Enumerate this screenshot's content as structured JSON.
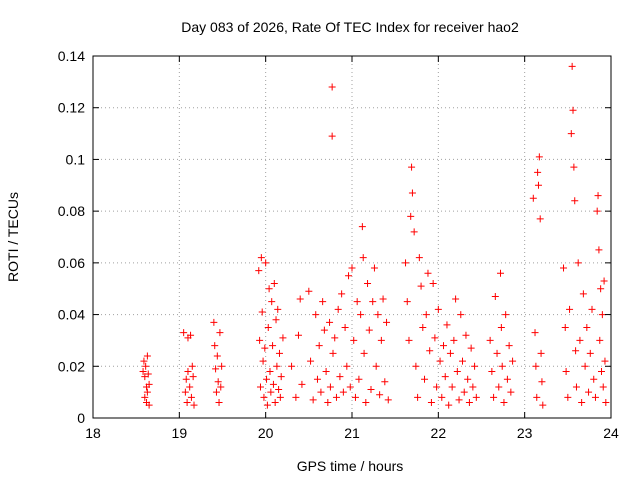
{
  "chart_data": {
    "type": "scatter",
    "title": "Day 083 of 2026, Rate Of TEC Index for receiver hao2",
    "xlabel": "GPS time / hours",
    "ylabel": "ROTI / TECUs",
    "xlim": [
      18,
      24
    ],
    "ylim": [
      0,
      0.14
    ],
    "x_ticks": [
      "18",
      "19",
      "20",
      "21",
      "22",
      "23",
      "24"
    ],
    "y_ticks": [
      "0",
      "0.02",
      "0.04",
      "0.06",
      "0.08",
      "0.1",
      "0.12",
      "0.14"
    ],
    "grid": true,
    "marker": "+",
    "marker_color": "#ff0000",
    "series": [
      {
        "name": "ROTI",
        "points": [
          [
            18.58,
            0.018
          ],
          [
            18.59,
            0.022
          ],
          [
            18.6,
            0.016
          ],
          [
            18.6,
            0.008
          ],
          [
            18.61,
            0.02
          ],
          [
            18.62,
            0.012
          ],
          [
            18.62,
            0.006
          ],
          [
            18.63,
            0.024
          ],
          [
            18.63,
            0.01
          ],
          [
            18.64,
            0.017
          ],
          [
            18.65,
            0.005
          ],
          [
            18.65,
            0.013
          ],
          [
            19.05,
            0.033
          ],
          [
            19.07,
            0.01
          ],
          [
            19.08,
            0.015
          ],
          [
            19.09,
            0.006
          ],
          [
            19.1,
            0.031
          ],
          [
            19.1,
            0.018
          ],
          [
            19.12,
            0.012
          ],
          [
            19.13,
            0.032
          ],
          [
            19.14,
            0.008
          ],
          [
            19.15,
            0.02
          ],
          [
            19.16,
            0.016
          ],
          [
            19.17,
            0.005
          ],
          [
            19.4,
            0.037
          ],
          [
            19.41,
            0.028
          ],
          [
            19.42,
            0.019
          ],
          [
            19.43,
            0.01
          ],
          [
            19.44,
            0.024
          ],
          [
            19.45,
            0.014
          ],
          [
            19.46,
            0.006
          ],
          [
            19.47,
            0.033
          ],
          [
            19.48,
            0.012
          ],
          [
            19.49,
            0.02
          ],
          [
            19.92,
            0.057
          ],
          [
            19.93,
            0.03
          ],
          [
            19.94,
            0.012
          ],
          [
            19.95,
            0.062
          ],
          [
            19.96,
            0.041
          ],
          [
            19.97,
            0.022
          ],
          [
            19.98,
            0.008
          ],
          [
            19.99,
            0.027
          ],
          [
            20.0,
            0.06
          ],
          [
            20.01,
            0.015
          ],
          [
            20.02,
            0.005
          ],
          [
            20.03,
            0.035
          ],
          [
            20.04,
            0.05
          ],
          [
            20.05,
            0.018
          ],
          [
            20.06,
            0.01
          ],
          [
            20.07,
            0.045
          ],
          [
            20.08,
            0.028
          ],
          [
            20.09,
            0.013
          ],
          [
            20.1,
            0.052
          ],
          [
            20.11,
            0.006
          ],
          [
            20.12,
            0.038
          ],
          [
            20.13,
            0.02
          ],
          [
            20.14,
            0.042
          ],
          [
            20.15,
            0.011
          ],
          [
            20.16,
            0.025
          ],
          [
            20.17,
            0.008
          ],
          [
            20.18,
            0.016
          ],
          [
            20.2,
            0.031
          ],
          [
            20.3,
            0.02
          ],
          [
            20.35,
            0.008
          ],
          [
            20.38,
            0.032
          ],
          [
            20.4,
            0.046
          ],
          [
            20.42,
            0.013
          ],
          [
            20.5,
            0.049
          ],
          [
            20.52,
            0.022
          ],
          [
            20.55,
            0.007
          ],
          [
            20.58,
            0.04
          ],
          [
            20.6,
            0.015
          ],
          [
            20.62,
            0.028
          ],
          [
            20.64,
            0.01
          ],
          [
            20.66,
            0.045
          ],
          [
            20.68,
            0.034
          ],
          [
            20.7,
            0.018
          ],
          [
            20.72,
            0.006
          ],
          [
            20.74,
            0.037
          ],
          [
            20.75,
            0.012
          ],
          [
            20.77,
            0.128
          ],
          [
            20.77,
            0.109
          ],
          [
            20.78,
            0.025
          ],
          [
            20.8,
            0.031
          ],
          [
            20.82,
            0.008
          ],
          [
            20.84,
            0.042
          ],
          [
            20.86,
            0.016
          ],
          [
            20.88,
            0.048
          ],
          [
            20.9,
            0.01
          ],
          [
            20.92,
            0.035
          ],
          [
            20.94,
            0.02
          ],
          [
            20.96,
            0.055
          ],
          [
            20.98,
            0.012
          ],
          [
            21.0,
            0.058
          ],
          [
            21.02,
            0.03
          ],
          [
            21.04,
            0.008
          ],
          [
            21.06,
            0.045
          ],
          [
            21.08,
            0.015
          ],
          [
            21.1,
            0.04
          ],
          [
            21.12,
            0.074
          ],
          [
            21.13,
            0.062
          ],
          [
            21.14,
            0.025
          ],
          [
            21.16,
            0.006
          ],
          [
            21.18,
            0.052
          ],
          [
            21.2,
            0.034
          ],
          [
            21.22,
            0.011
          ],
          [
            21.24,
            0.045
          ],
          [
            21.26,
            0.058
          ],
          [
            21.28,
            0.02
          ],
          [
            21.3,
            0.04
          ],
          [
            21.32,
            0.009
          ],
          [
            21.34,
            0.03
          ],
          [
            21.36,
            0.046
          ],
          [
            21.38,
            0.014
          ],
          [
            21.4,
            0.037
          ],
          [
            21.42,
            0.007
          ],
          [
            21.62,
            0.06
          ],
          [
            21.64,
            0.045
          ],
          [
            21.66,
            0.03
          ],
          [
            21.68,
            0.078
          ],
          [
            21.69,
            0.097
          ],
          [
            21.7,
            0.087
          ],
          [
            21.72,
            0.072
          ],
          [
            21.74,
            0.02
          ],
          [
            21.76,
            0.008
          ],
          [
            21.78,
            0.062
          ],
          [
            21.8,
            0.051
          ],
          [
            21.82,
            0.035
          ],
          [
            21.84,
            0.015
          ],
          [
            21.86,
            0.04
          ],
          [
            21.88,
            0.056
          ],
          [
            21.9,
            0.026
          ],
          [
            21.92,
            0.006
          ],
          [
            21.94,
            0.052
          ],
          [
            21.96,
            0.031
          ],
          [
            21.98,
            0.012
          ],
          [
            22.0,
            0.042
          ],
          [
            22.02,
            0.022
          ],
          [
            22.04,
            0.008
          ],
          [
            22.06,
            0.028
          ],
          [
            22.08,
            0.016
          ],
          [
            22.1,
            0.036
          ],
          [
            22.12,
            0.005
          ],
          [
            22.14,
            0.025
          ],
          [
            22.16,
            0.012
          ],
          [
            22.18,
            0.03
          ],
          [
            22.2,
            0.046
          ],
          [
            22.22,
            0.018
          ],
          [
            22.24,
            0.007
          ],
          [
            22.26,
            0.04
          ],
          [
            22.28,
            0.022
          ],
          [
            22.3,
            0.01
          ],
          [
            22.32,
            0.032
          ],
          [
            22.34,
            0.015
          ],
          [
            22.36,
            0.006
          ],
          [
            22.38,
            0.027
          ],
          [
            22.4,
            0.012
          ],
          [
            22.42,
            0.02
          ],
          [
            22.44,
            0.008
          ],
          [
            22.6,
            0.03
          ],
          [
            22.62,
            0.018
          ],
          [
            22.64,
            0.008
          ],
          [
            22.66,
            0.047
          ],
          [
            22.68,
            0.025
          ],
          [
            22.7,
            0.012
          ],
          [
            22.72,
            0.056
          ],
          [
            22.73,
            0.035
          ],
          [
            22.74,
            0.02
          ],
          [
            22.76,
            0.006
          ],
          [
            22.78,
            0.04
          ],
          [
            22.8,
            0.015
          ],
          [
            22.82,
            0.028
          ],
          [
            22.84,
            0.01
          ],
          [
            22.86,
            0.022
          ],
          [
            23.1,
            0.085
          ],
          [
            23.12,
            0.033
          ],
          [
            23.13,
            0.02
          ],
          [
            23.14,
            0.008
          ],
          [
            23.15,
            0.095
          ],
          [
            23.16,
            0.09
          ],
          [
            23.17,
            0.101
          ],
          [
            23.18,
            0.077
          ],
          [
            23.19,
            0.025
          ],
          [
            23.2,
            0.014
          ],
          [
            23.21,
            0.005
          ],
          [
            23.45,
            0.058
          ],
          [
            23.47,
            0.035
          ],
          [
            23.48,
            0.018
          ],
          [
            23.5,
            0.008
          ],
          [
            23.52,
            0.042
          ],
          [
            23.54,
            0.11
          ],
          [
            23.55,
            0.136
          ],
          [
            23.56,
            0.119
          ],
          [
            23.57,
            0.097
          ],
          [
            23.58,
            0.084
          ],
          [
            23.59,
            0.026
          ],
          [
            23.6,
            0.012
          ],
          [
            23.62,
            0.06
          ],
          [
            23.64,
            0.03
          ],
          [
            23.66,
            0.006
          ],
          [
            23.68,
            0.048
          ],
          [
            23.7,
            0.02
          ],
          [
            23.72,
            0.035
          ],
          [
            23.74,
            0.01
          ],
          [
            23.76,
            0.025
          ],
          [
            23.78,
            0.042
          ],
          [
            23.8,
            0.015
          ],
          [
            23.82,
            0.008
          ],
          [
            23.84,
            0.08
          ],
          [
            23.85,
            0.086
          ],
          [
            23.86,
            0.065
          ],
          [
            23.87,
            0.03
          ],
          [
            23.88,
            0.05
          ],
          [
            23.89,
            0.018
          ],
          [
            23.9,
            0.04
          ],
          [
            23.91,
            0.012
          ],
          [
            23.92,
            0.053
          ],
          [
            23.93,
            0.022
          ],
          [
            23.94,
            0.006
          ]
        ]
      }
    ]
  }
}
